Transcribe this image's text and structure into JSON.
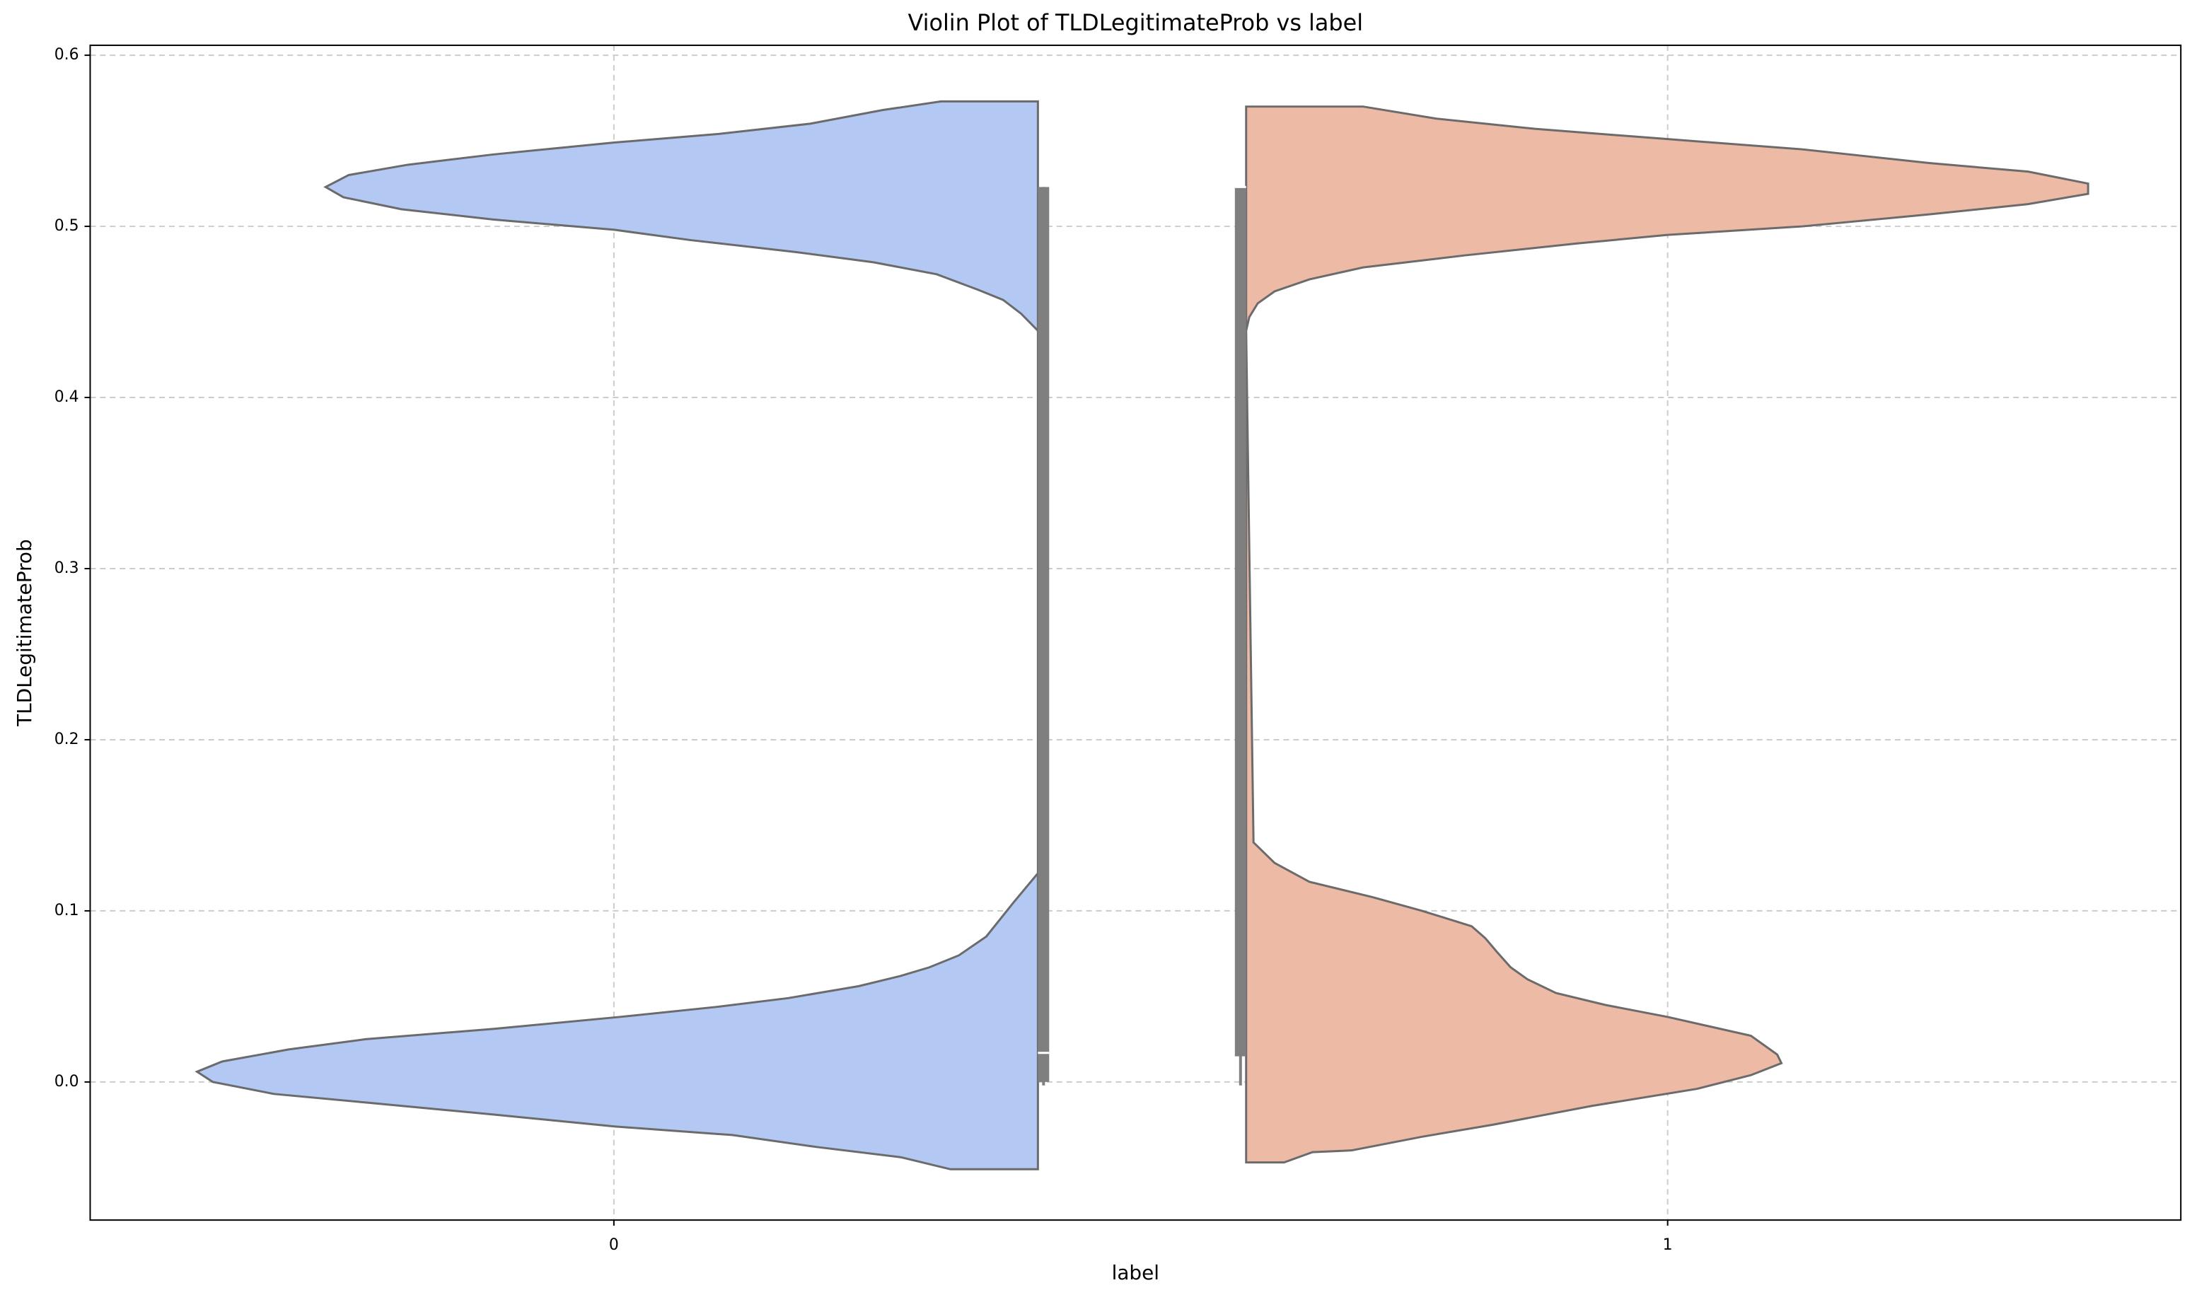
{
  "chart_data": {
    "type": "violin",
    "title": "Violin Plot of TLDLegitimateProb vs label",
    "xlabel": "label",
    "ylabel": "TLDLegitimateProb",
    "categories": [
      "0",
      "1"
    ],
    "xlim": [
      -0.497,
      1.487
    ],
    "ylim": [
      -0.0807,
      0.6058
    ],
    "yticks": [
      {
        "value": 0,
        "label": "0.0"
      },
      0.1,
      0.2,
      0.3,
      0.4,
      0.5,
      0.6
    ],
    "grid": true,
    "violins": [
      {
        "color": "#b3c8f2",
        "y": [
          0.573,
          0.568,
          0.56,
          0.554,
          0.549,
          0.542,
          0.536,
          0.53,
          0.523,
          0.517,
          0.51,
          0.504,
          0.498,
          0.492,
          0.485,
          0.479,
          0.472,
          0.463,
          0.457,
          0.449,
          0.439,
          0.122,
          0.105,
          0.085,
          0.074,
          0.067,
          0.062,
          0.056,
          0.049,
          0.044,
          0.038,
          0.031,
          0.025,
          0.019,
          0.012,
          0.006,
          0.0,
          -0.007,
          -0.012,
          -0.019,
          -0.026,
          -0.031,
          -0.038,
          -0.044,
          -0.051
        ],
        "width": [
          0.092,
          0.147,
          0.216,
          0.303,
          0.402,
          0.517,
          0.598,
          0.654,
          0.676,
          0.659,
          0.604,
          0.517,
          0.402,
          0.33,
          0.23,
          0.156,
          0.096,
          0.057,
          0.033,
          0.016,
          0,
          0,
          0.023,
          0.049,
          0.075,
          0.103,
          0.13,
          0.17,
          0.237,
          0.303,
          0.397,
          0.517,
          0.638,
          0.711,
          0.774,
          0.798,
          0.783,
          0.725,
          0.638,
          0.517,
          0.402,
          0.29,
          0.21,
          0.13,
          0.083
        ],
        "box": {
          "whisker_low": -0.002,
          "q1": 0.0,
          "median": 0.017,
          "q3": 0.523,
          "whisker_high": 0.523
        }
      },
      {
        "color": "#edbaa5",
        "y": [
          0.57,
          0.563,
          0.557,
          0.551,
          0.545,
          0.537,
          0.532,
          0.525,
          0.519,
          0.513,
          0.507,
          0.5,
          0.495,
          0.49,
          0.483,
          0.476,
          0.469,
          0.462,
          0.455,
          0.447,
          0.439,
          0.14,
          0.128,
          0.117,
          0.108,
          0.1,
          0.091,
          0.084,
          0.076,
          0.067,
          0.06,
          0.052,
          0.045,
          0.038,
          0.027,
          0.016,
          0.011,
          0.004,
          -0.004,
          -0.014,
          -0.025,
          -0.032,
          -0.04,
          -0.041,
          -0.047
        ],
        "width": [
          0.111,
          0.18,
          0.274,
          0.4,
          0.528,
          0.648,
          0.742,
          0.799,
          0.799,
          0.742,
          0.648,
          0.528,
          0.4,
          0.314,
          0.207,
          0.111,
          0.06,
          0.027,
          0.011,
          0.003,
          0,
          0.007,
          0.027,
          0.06,
          0.12,
          0.167,
          0.214,
          0.227,
          0.238,
          0.251,
          0.267,
          0.294,
          0.341,
          0.4,
          0.479,
          0.504,
          0.508,
          0.479,
          0.428,
          0.328,
          0.234,
          0.167,
          0.1,
          0.063,
          0.036
        ],
        "box": {
          "whisker_low": -0.002,
          "q1": 0.015,
          "median": 0.523,
          "q3": 0.523,
          "whisker_high": 0.523
        }
      }
    ]
  }
}
